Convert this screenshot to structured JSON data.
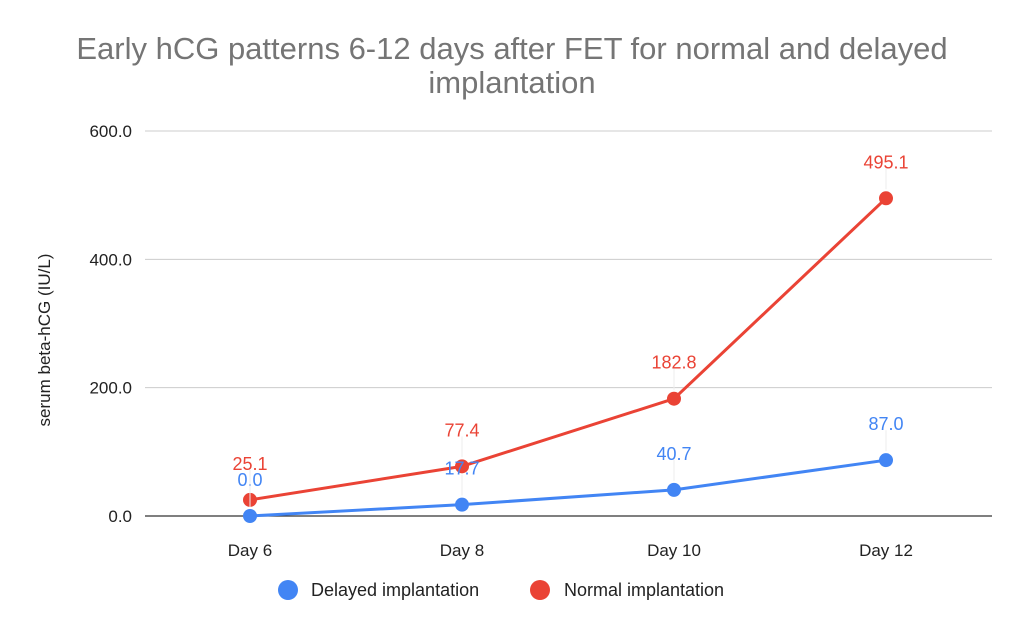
{
  "chart_data": {
    "type": "line",
    "title_lines": [
      "Early hCG patterns 6-12 days after FET for normal and delayed",
      "implantation"
    ],
    "xlabel": "",
    "ylabel": "serum beta-hCG (IU/L)",
    "categories": [
      "Day 6",
      "Day 8",
      "Day 10",
      "Day 12"
    ],
    "ylim": [
      0,
      600
    ],
    "yticks": [
      0,
      200,
      400,
      600
    ],
    "ytick_labels": [
      "0.0",
      "200.0",
      "400.0",
      "600.0"
    ],
    "grid": true,
    "legend_position": "bottom",
    "series": [
      {
        "name": "Delayed implantation",
        "color": "#4285f4",
        "values": [
          0.0,
          17.7,
          40.7,
          87.0
        ],
        "labels": [
          "0.0",
          "17.7",
          "40.7",
          "87.0"
        ]
      },
      {
        "name": "Normal implantation",
        "color": "#ea4335",
        "values": [
          25.1,
          77.4,
          182.8,
          495.1
        ],
        "labels": [
          "25.1",
          "77.4",
          "182.8",
          "495.1"
        ]
      }
    ]
  }
}
